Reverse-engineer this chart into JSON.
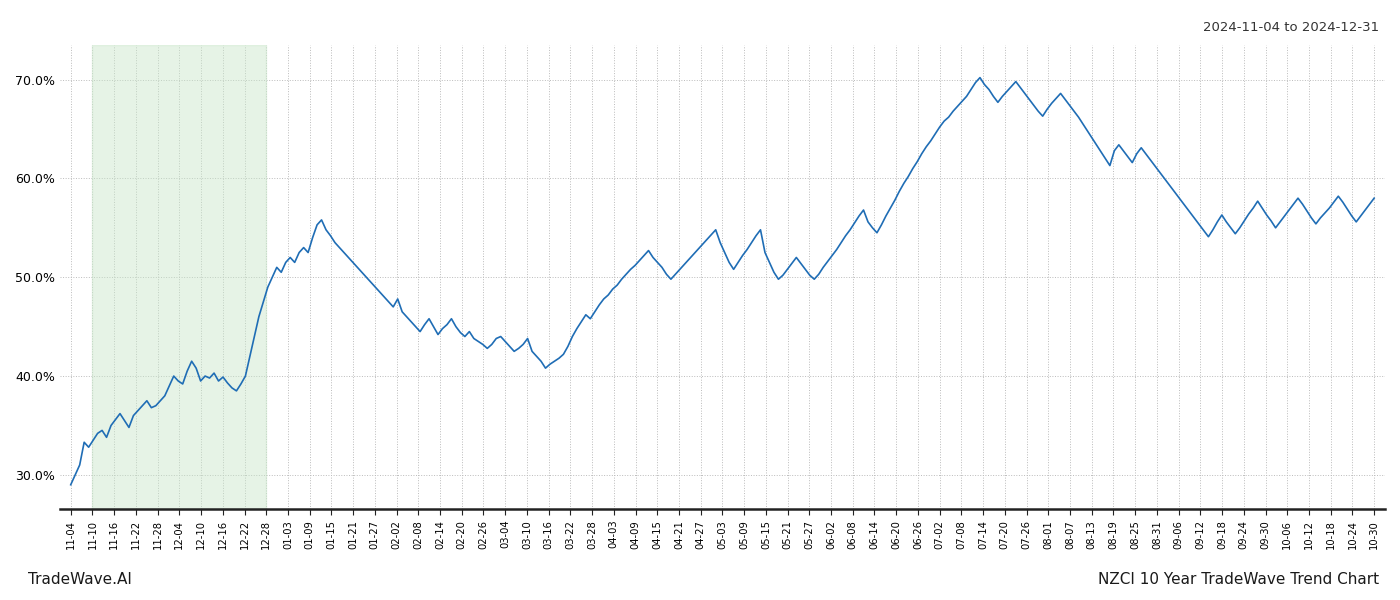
{
  "title_right": "2024-11-04 to 2024-12-31",
  "footer_left": "TradeWave.AI",
  "footer_right": "NZCI 10 Year TradeWave Trend Chart",
  "background_color": "#ffffff",
  "line_color": "#1f6db5",
  "line_width": 1.2,
  "highlight_color": "#c8e6c9",
  "highlight_alpha": 0.45,
  "highlight_x_start_label": "11-10",
  "highlight_x_end_label": "12-28",
  "ylim": [
    0.265,
    0.735
  ],
  "yticks": [
    0.3,
    0.4,
    0.5,
    0.6,
    0.7
  ],
  "grid_color": "#bbbbbb",
  "grid_linestyle": ":",
  "x_labels": [
    "11-04",
    "11-10",
    "11-16",
    "11-22",
    "11-28",
    "12-04",
    "12-10",
    "12-16",
    "12-22",
    "12-28",
    "01-03",
    "01-09",
    "01-15",
    "01-21",
    "01-27",
    "02-02",
    "02-08",
    "02-14",
    "02-20",
    "02-26",
    "03-04",
    "03-10",
    "03-16",
    "03-22",
    "03-28",
    "04-03",
    "04-09",
    "04-15",
    "04-21",
    "04-27",
    "05-03",
    "05-09",
    "05-15",
    "05-21",
    "05-27",
    "06-02",
    "06-08",
    "06-14",
    "06-20",
    "06-26",
    "07-02",
    "07-08",
    "07-14",
    "07-20",
    "07-26",
    "08-01",
    "08-07",
    "08-13",
    "08-19",
    "08-25",
    "08-31",
    "09-06",
    "09-12",
    "09-18",
    "09-24",
    "09-30",
    "10-06",
    "10-12",
    "10-18",
    "10-24",
    "10-30"
  ],
  "values": [
    0.29,
    0.3,
    0.31,
    0.333,
    0.328,
    0.335,
    0.342,
    0.345,
    0.338,
    0.35,
    0.356,
    0.362,
    0.355,
    0.348,
    0.36,
    0.365,
    0.37,
    0.375,
    0.368,
    0.37,
    0.375,
    0.38,
    0.39,
    0.4,
    0.395,
    0.392,
    0.405,
    0.415,
    0.408,
    0.395,
    0.4,
    0.398,
    0.403,
    0.395,
    0.399,
    0.393,
    0.388,
    0.385,
    0.392,
    0.4,
    0.42,
    0.44,
    0.46,
    0.475,
    0.49,
    0.5,
    0.51,
    0.505,
    0.515,
    0.52,
    0.515,
    0.525,
    0.53,
    0.525,
    0.54,
    0.553,
    0.558,
    0.548,
    0.542,
    0.535,
    0.53,
    0.525,
    0.52,
    0.515,
    0.51,
    0.505,
    0.5,
    0.495,
    0.49,
    0.485,
    0.48,
    0.475,
    0.47,
    0.478,
    0.465,
    0.46,
    0.455,
    0.45,
    0.445,
    0.452,
    0.458,
    0.45,
    0.442,
    0.448,
    0.452,
    0.458,
    0.45,
    0.444,
    0.44,
    0.445,
    0.438,
    0.435,
    0.432,
    0.428,
    0.432,
    0.438,
    0.44,
    0.435,
    0.43,
    0.425,
    0.428,
    0.432,
    0.438,
    0.425,
    0.42,
    0.415,
    0.408,
    0.412,
    0.415,
    0.418,
    0.422,
    0.43,
    0.44,
    0.448,
    0.455,
    0.462,
    0.458,
    0.465,
    0.472,
    0.478,
    0.482,
    0.488,
    0.492,
    0.498,
    0.503,
    0.508,
    0.512,
    0.517,
    0.522,
    0.527,
    0.52,
    0.515,
    0.51,
    0.503,
    0.498,
    0.503,
    0.508,
    0.513,
    0.518,
    0.523,
    0.528,
    0.533,
    0.538,
    0.543,
    0.548,
    0.535,
    0.525,
    0.515,
    0.508,
    0.515,
    0.522,
    0.528,
    0.535,
    0.542,
    0.548,
    0.525,
    0.515,
    0.505,
    0.498,
    0.502,
    0.508,
    0.514,
    0.52,
    0.514,
    0.508,
    0.502,
    0.498,
    0.503,
    0.51,
    0.516,
    0.522,
    0.528,
    0.535,
    0.542,
    0.548,
    0.555,
    0.562,
    0.568,
    0.556,
    0.55,
    0.545,
    0.553,
    0.562,
    0.57,
    0.578,
    0.587,
    0.595,
    0.602,
    0.61,
    0.617,
    0.625,
    0.632,
    0.638,
    0.645,
    0.652,
    0.658,
    0.662,
    0.668,
    0.673,
    0.678,
    0.683,
    0.69,
    0.697,
    0.702,
    0.695,
    0.69,
    0.683,
    0.677,
    0.683,
    0.688,
    0.693,
    0.698,
    0.692,
    0.686,
    0.68,
    0.674,
    0.668,
    0.663,
    0.67,
    0.676,
    0.681,
    0.686,
    0.68,
    0.674,
    0.668,
    0.662,
    0.655,
    0.648,
    0.641,
    0.634,
    0.627,
    0.62,
    0.613,
    0.628,
    0.634,
    0.628,
    0.622,
    0.616,
    0.625,
    0.631,
    0.625,
    0.619,
    0.613,
    0.607,
    0.601,
    0.595,
    0.589,
    0.583,
    0.577,
    0.571,
    0.565,
    0.559,
    0.553,
    0.547,
    0.541,
    0.548,
    0.556,
    0.563,
    0.556,
    0.55,
    0.544,
    0.55,
    0.557,
    0.564,
    0.57,
    0.577,
    0.57,
    0.563,
    0.557,
    0.55,
    0.556,
    0.562,
    0.568,
    0.574,
    0.58,
    0.574,
    0.567,
    0.56,
    0.554,
    0.56,
    0.565,
    0.57,
    0.576,
    0.582,
    0.576,
    0.569,
    0.562,
    0.556,
    0.562,
    0.568,
    0.574,
    0.58
  ]
}
